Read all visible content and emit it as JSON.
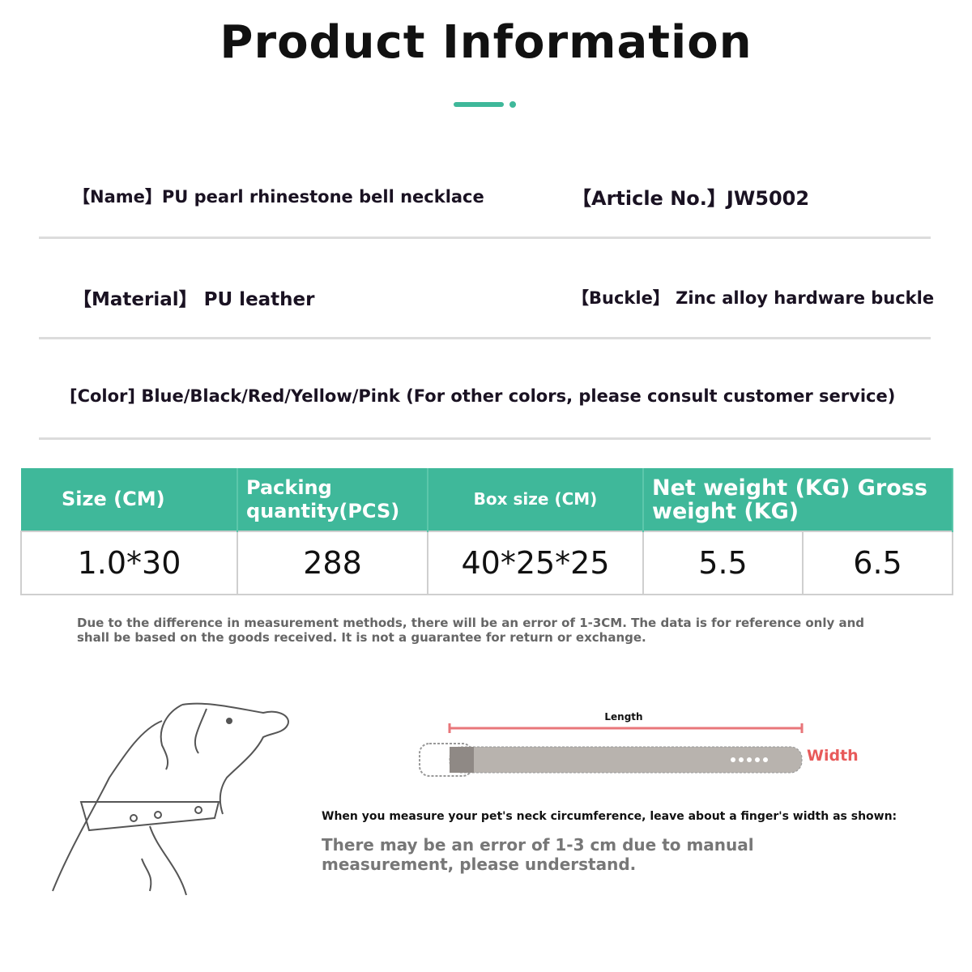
{
  "title": "Product Information",
  "accent_color": "#3fb89a",
  "info": {
    "name": "【Name】PU pearl rhinestone bell necklace",
    "article": "【Article No.】JW5002",
    "material": "【Material】 PU leather",
    "buckle": "【Buckle】 Zinc alloy hardware buckle",
    "color": "[Color] Blue/Black/Red/Yellow/Pink (For other colors, please consult customer service)"
  },
  "table": {
    "headers": [
      "Size (CM)",
      "Packing quantity(PCS)",
      "Box size (CM)",
      "Net weight (KG) Gross weight (KG)"
    ],
    "row": [
      "1.0*30",
      "288",
      "40*25*25",
      "5.5",
      "6.5"
    ]
  },
  "disclaimer": "Due to the difference in measurement methods, there will be an error of 1-3CM. The data is for reference only and shall be based on the goods received. It is not a guarantee for return or exchange.",
  "diagram": {
    "length_label": "Length",
    "width_label": "Width",
    "length_color": "#e8767a",
    "width_color": "#e85a5a"
  },
  "measure_tip": "When you measure your pet's neck circumference, leave about a finger's width as shown:",
  "error_note": "There may be an error of 1-3 cm due to manual measurement, please understand."
}
